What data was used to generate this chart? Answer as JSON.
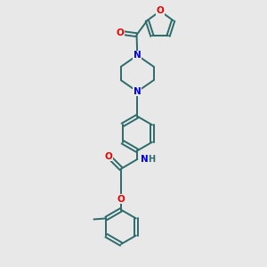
{
  "background_color": "#e8e8e8",
  "bond_color": "#2d6b6b",
  "N_color": "#0000ee",
  "O_color": "#ee0000",
  "figsize": [
    3.0,
    3.0
  ],
  "dpi": 100,
  "xlim": [
    0,
    10
  ],
  "ylim": [
    0,
    14
  ]
}
